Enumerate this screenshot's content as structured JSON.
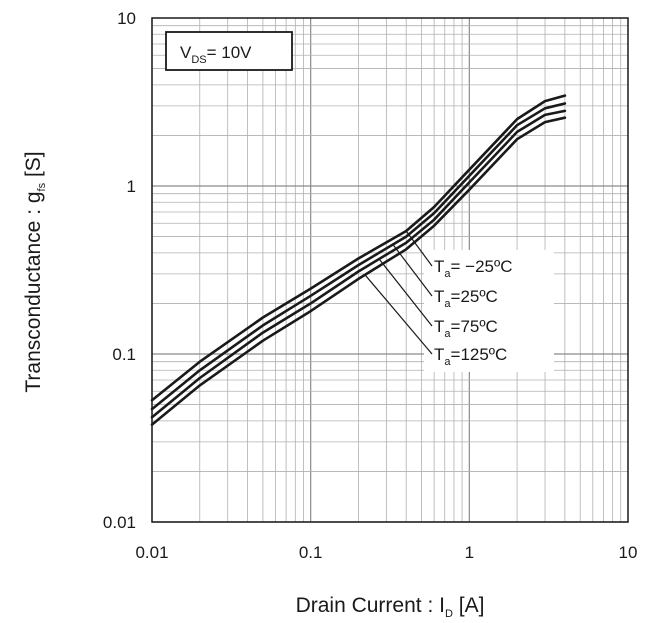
{
  "chart_data": {
    "type": "line",
    "x_scale": "log",
    "y_scale": "log",
    "xlim": [
      0.01,
      10
    ],
    "ylim": [
      0.01,
      10
    ],
    "grid": true,
    "x_ticks": [
      "0.01",
      "0.1",
      "1",
      "10"
    ],
    "y_ticks": [
      "0.01",
      "0.1",
      "1",
      "10"
    ],
    "xlabel": {
      "main": "Drain Current : I",
      "sub": "D",
      "unit": " [A]"
    },
    "ylabel": {
      "main": "Transconductance : g",
      "sub": "fs",
      "unit": " [S]"
    },
    "condition": {
      "main": "V",
      "sub": "DS",
      "rest": "= 10V"
    },
    "series": [
      {
        "name": "Ta= −25ºC",
        "label_main": "T",
        "label_sub": "a",
        "label_rest": "= −25ºC",
        "x": [
          0.01,
          0.02,
          0.05,
          0.1,
          0.2,
          0.4,
          0.6,
          1.0,
          2.0,
          3.0,
          4.0
        ],
        "y": [
          0.053,
          0.09,
          0.165,
          0.245,
          0.37,
          0.54,
          0.75,
          1.25,
          2.5,
          3.2,
          3.45
        ]
      },
      {
        "name": "Ta=25ºC",
        "label_main": "T",
        "label_sub": "a",
        "label_rest": "=25ºC",
        "x": [
          0.01,
          0.02,
          0.05,
          0.1,
          0.2,
          0.4,
          0.6,
          1.0,
          2.0,
          3.0,
          4.0
        ],
        "y": [
          0.047,
          0.08,
          0.148,
          0.222,
          0.338,
          0.5,
          0.69,
          1.15,
          2.3,
          2.9,
          3.1
        ]
      },
      {
        "name": "Ta=75ºC",
        "label_main": "T",
        "label_sub": "a",
        "label_rest": "=75ºC",
        "x": [
          0.01,
          0.02,
          0.05,
          0.1,
          0.2,
          0.4,
          0.6,
          1.0,
          2.0,
          3.0,
          4.0
        ],
        "y": [
          0.042,
          0.072,
          0.134,
          0.2,
          0.31,
          0.46,
          0.63,
          1.05,
          2.1,
          2.65,
          2.8
        ]
      },
      {
        "name": "Ta=125ºC",
        "label_main": "T",
        "label_sub": "a",
        "label_rest": "=125ºC",
        "x": [
          0.01,
          0.02,
          0.05,
          0.1,
          0.2,
          0.4,
          0.6,
          1.0,
          2.0,
          3.0,
          4.0
        ],
        "y": [
          0.038,
          0.065,
          0.12,
          0.18,
          0.28,
          0.42,
          0.58,
          0.95,
          1.9,
          2.4,
          2.55
        ]
      }
    ],
    "colors": {
      "line": "#1a1a1a",
      "grid": "#b0b0b0",
      "frame": "#1a1a1a"
    }
  }
}
